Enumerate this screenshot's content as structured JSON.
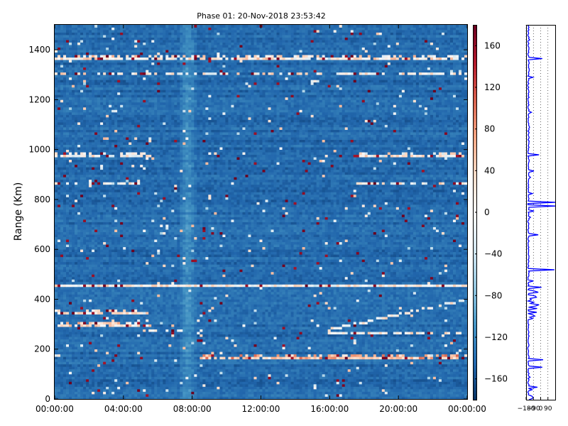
{
  "chart_data": [
    {
      "type": "heatmap",
      "title": "Phase 01: 20-Nov-2018 23:53:42",
      "xlabel": "",
      "ylabel": "Range (Km)",
      "x_tick_labels": [
        "00:00:00",
        "04:00:00",
        "08:00:00",
        "12:00:00",
        "16:00:00",
        "20:00:00",
        "00:00:00"
      ],
      "x_tick_hours": [
        0,
        4,
        8,
        12,
        16,
        20,
        24
      ],
      "xlim_hours": [
        0,
        24
      ],
      "ylim": [
        0,
        1500
      ],
      "y_ticks": [
        0,
        200,
        400,
        600,
        800,
        1000,
        1200,
        1400
      ],
      "colorbar": {
        "range": [
          -180,
          180
        ],
        "ticks": [
          -160,
          -120,
          -80,
          -40,
          0,
          40,
          80,
          120,
          160
        ],
        "colormap": "RdBu_r",
        "colors": [
          "#053061",
          "#2166ac",
          "#4393c3",
          "#92c5de",
          "#d1e5f0",
          "#f7f7f7",
          "#fddbc7",
          "#f4a582",
          "#d6604d",
          "#b2182b",
          "#67001f"
        ]
      },
      "background_phase": -140,
      "bright_column_hours": [
        7.2,
        8.3
      ],
      "bands": [
        {
          "range_km": 1364,
          "hours": [
            0,
            24
          ],
          "phase": 20,
          "texture": "dense"
        },
        {
          "range_km": 1300,
          "hours": [
            0,
            24
          ],
          "phase": 10,
          "texture": "sparse"
        },
        {
          "range_km": 978,
          "hours": [
            0,
            5.5
          ],
          "phase": 10,
          "texture": "dense"
        },
        {
          "range_km": 978,
          "hours": [
            17.5,
            24
          ],
          "phase": 10,
          "texture": "dense"
        },
        {
          "range_km": 862,
          "hours": [
            0,
            5.5
          ],
          "phase": 0,
          "texture": "sparse"
        },
        {
          "range_km": 862,
          "hours": [
            17.5,
            24
          ],
          "phase": 0,
          "texture": "sparse"
        },
        {
          "range_km": 452,
          "hours": [
            0,
            24
          ],
          "phase": 10,
          "texture": "solid"
        },
        {
          "range_km": 340,
          "hours": [
            0,
            5.4
          ],
          "phase": 10,
          "texture": "dense"
        },
        {
          "range_km": 290,
          "hours": [
            0.2,
            5.6
          ],
          "phase": 30,
          "texture": "dense"
        },
        {
          "range_km": 272,
          "hours": [
            5.6,
            7.5
          ],
          "phase": 10,
          "texture": "sparse"
        },
        {
          "range_km": 268,
          "hours": [
            16.0,
            24
          ],
          "phase": 10,
          "texture": "sparse"
        },
        {
          "range_km": 160,
          "hours": [
            8.5,
            24
          ],
          "phase": 60,
          "texture": "dense"
        }
      ],
      "diagonal_feature": {
        "start": [
          16.0,
          280
        ],
        "end": [
          24.0,
          400
        ],
        "phase": 10
      }
    },
    {
      "type": "line",
      "xlabel": "",
      "ylabel": "",
      "x_tick_labels": [
        "-180",
        "-90",
        "0",
        "90"
      ],
      "x_ticks": [
        -180,
        -90,
        0,
        90
      ],
      "xlim": [
        -180,
        180
      ],
      "ylim": [
        0,
        1500
      ],
      "line_color": "#0000ff",
      "baseline_phase": -160,
      "spikes": [
        {
          "range_km": 1364,
          "phase": 20
        },
        {
          "range_km": 978,
          "phase": -20
        },
        {
          "range_km": 790,
          "phase": 180
        },
        {
          "range_km": 775,
          "phase": 180
        },
        {
          "range_km": 660,
          "phase": -30
        },
        {
          "range_km": 522,
          "phase": 170
        },
        {
          "range_km": 452,
          "phase": 10
        },
        {
          "range_km": 430,
          "phase": -20
        },
        {
          "range_km": 400,
          "phase": -10
        },
        {
          "range_km": 380,
          "phase": -20
        },
        {
          "range_km": 340,
          "phase": 40
        },
        {
          "range_km": 160,
          "phase": 30
        },
        {
          "range_km": 130,
          "phase": 20
        },
        {
          "range_km": 50,
          "phase": -40
        }
      ]
    }
  ]
}
